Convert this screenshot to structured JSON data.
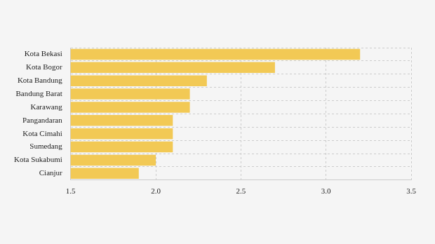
{
  "chart_data": {
    "type": "bar",
    "orientation": "horizontal",
    "categories": [
      "Kota Bekasi",
      "Kota Bogor",
      "Kota Bandung",
      "Bandung Barat",
      "Karawang",
      "Pangandaran",
      "Kota Cimahi",
      "Sumedang",
      "Kota Sukabumi",
      "Cianjur"
    ],
    "values": [
      3.2,
      2.7,
      2.3,
      2.2,
      2.2,
      2.1,
      2.1,
      2.1,
      2.0,
      1.9
    ],
    "color": "#f2c955",
    "xlim": [
      1.5,
      3.5
    ],
    "xticks": [
      1.5,
      {
        "value": 2,
        "label": "2.0"
      },
      2.5,
      {
        "value": 3,
        "label": "3.0"
      },
      3.5
    ],
    "grid": true
  }
}
